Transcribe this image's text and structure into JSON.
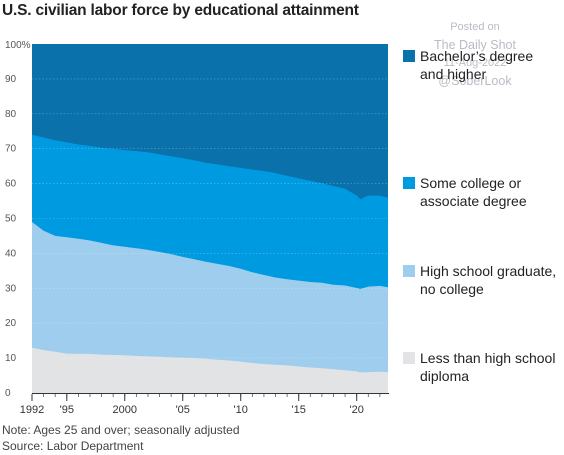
{
  "chart_data": {
    "type": "area",
    "title": "U.S. civilian labor force by educational attainment",
    "stacked": true,
    "xlim": [
      1992,
      2022.7
    ],
    "ylim": [
      0,
      100
    ],
    "y_ticks": [
      "0",
      "10",
      "20",
      "30",
      "40",
      "50",
      "60",
      "70",
      "80",
      "90",
      "100%"
    ],
    "y_tick_values": [
      0,
      10,
      20,
      30,
      40,
      50,
      60,
      70,
      80,
      90,
      100
    ],
    "x_ticks": [
      "1992",
      "'95",
      "2000",
      "'05",
      "'10",
      "'15",
      "'20"
    ],
    "x_tick_values": [
      1992,
      1995,
      2000,
      2005,
      2010,
      2015,
      2020
    ],
    "x": [
      1992,
      1993,
      1994,
      1995,
      1996,
      1997,
      1998,
      1999,
      2000,
      2001,
      2002,
      2003,
      2004,
      2005,
      2006,
      2007,
      2008,
      2009,
      2010,
      2011,
      2012,
      2013,
      2014,
      2015,
      2016,
      2017,
      2018,
      2019,
      2020,
      2020.3,
      2021,
      2022,
      2022.7
    ],
    "cumulative": [
      {
        "name": "Less than high school diploma",
        "values": [
          13.0,
          12.3,
          11.8,
          11.3,
          11.2,
          11.2,
          11.0,
          10.9,
          10.8,
          10.6,
          10.5,
          10.4,
          10.2,
          10.1,
          10.0,
          9.8,
          9.5,
          9.3,
          9.0,
          8.6,
          8.3,
          8.1,
          7.9,
          7.6,
          7.3,
          7.1,
          6.8,
          6.5,
          6.2,
          5.9,
          6.0,
          6.1,
          6.0
        ]
      },
      {
        "name": "High school graduate, no college",
        "values": [
          49.0,
          46.5,
          45.0,
          44.6,
          44.2,
          43.7,
          43.0,
          42.3,
          41.9,
          41.5,
          41.0,
          40.4,
          39.8,
          39.0,
          38.3,
          37.6,
          37.0,
          36.4,
          35.6,
          34.6,
          33.8,
          33.1,
          32.6,
          32.2,
          31.8,
          31.6,
          31.0,
          30.8,
          30.1,
          29.8,
          30.5,
          30.7,
          30.3
        ]
      },
      {
        "name": "Some college or associate degree",
        "values": [
          74.0,
          73.2,
          72.4,
          71.8,
          71.2,
          70.8,
          70.3,
          70.0,
          69.6,
          69.3,
          69.0,
          68.4,
          67.8,
          67.3,
          66.7,
          66.0,
          65.5,
          65.0,
          64.5,
          64.0,
          63.6,
          63.0,
          62.2,
          61.5,
          60.8,
          60.1,
          59.3,
          58.5,
          56.6,
          55.5,
          56.6,
          56.5,
          56.0
        ]
      },
      {
        "name": "Bachelor’s degree and higher",
        "values": [
          100,
          100,
          100,
          100,
          100,
          100,
          100,
          100,
          100,
          100,
          100,
          100,
          100,
          100,
          100,
          100,
          100,
          100,
          100,
          100,
          100,
          100,
          100,
          100,
          100,
          100,
          100,
          100,
          100,
          100,
          100,
          100,
          100
        ]
      }
    ],
    "colors": [
      "#e2e3e5",
      "#9ecdee",
      "#009ae1",
      "#0a71ab"
    ]
  },
  "legend": [
    {
      "label": "Bachelor’s degree and higher",
      "color": "#0a71ab"
    },
    {
      "label": "Some college or associate degree",
      "color": "#009ae1"
    },
    {
      "label": "High school graduate, no college",
      "color": "#9ecdee"
    },
    {
      "label": "Less than high school diploma",
      "color": "#e2e3e5"
    }
  ],
  "watermark": {
    "line1": "Posted on",
    "line2": "The Daily Shot",
    "line3": "11-Aug-2022",
    "line4": "@SoberLook"
  },
  "notes": {
    "note": "Note: Ages 25 and over; seasonally adjusted",
    "source": "Source: Labor Department"
  }
}
